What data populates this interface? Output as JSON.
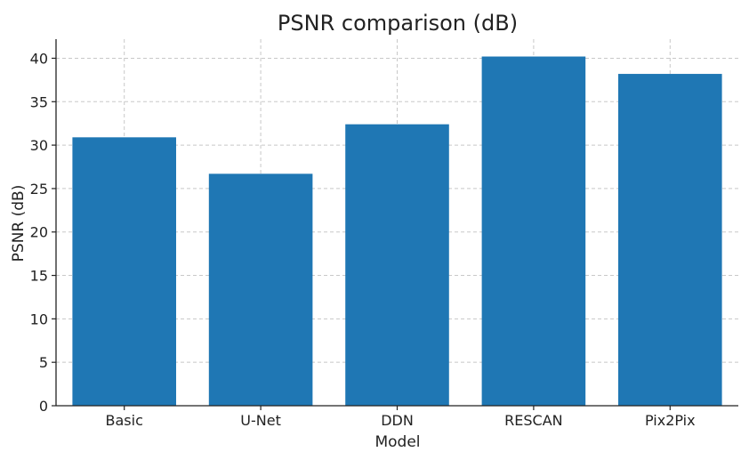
{
  "chart_data": {
    "type": "bar",
    "title": "PSNR comparison (dB)",
    "xlabel": "Model",
    "ylabel": "PSNR (dB)",
    "categories": [
      "Basic",
      "U-Net",
      "DDN",
      "RESCAN",
      "Pix2Pix"
    ],
    "values": [
      30.9,
      26.7,
      32.4,
      40.2,
      38.2
    ],
    "ylim": [
      0,
      42.2
    ],
    "yticks": [
      0,
      5,
      10,
      15,
      20,
      25,
      30,
      35,
      40
    ],
    "grid": true,
    "bar_color": "#1f77b4"
  }
}
